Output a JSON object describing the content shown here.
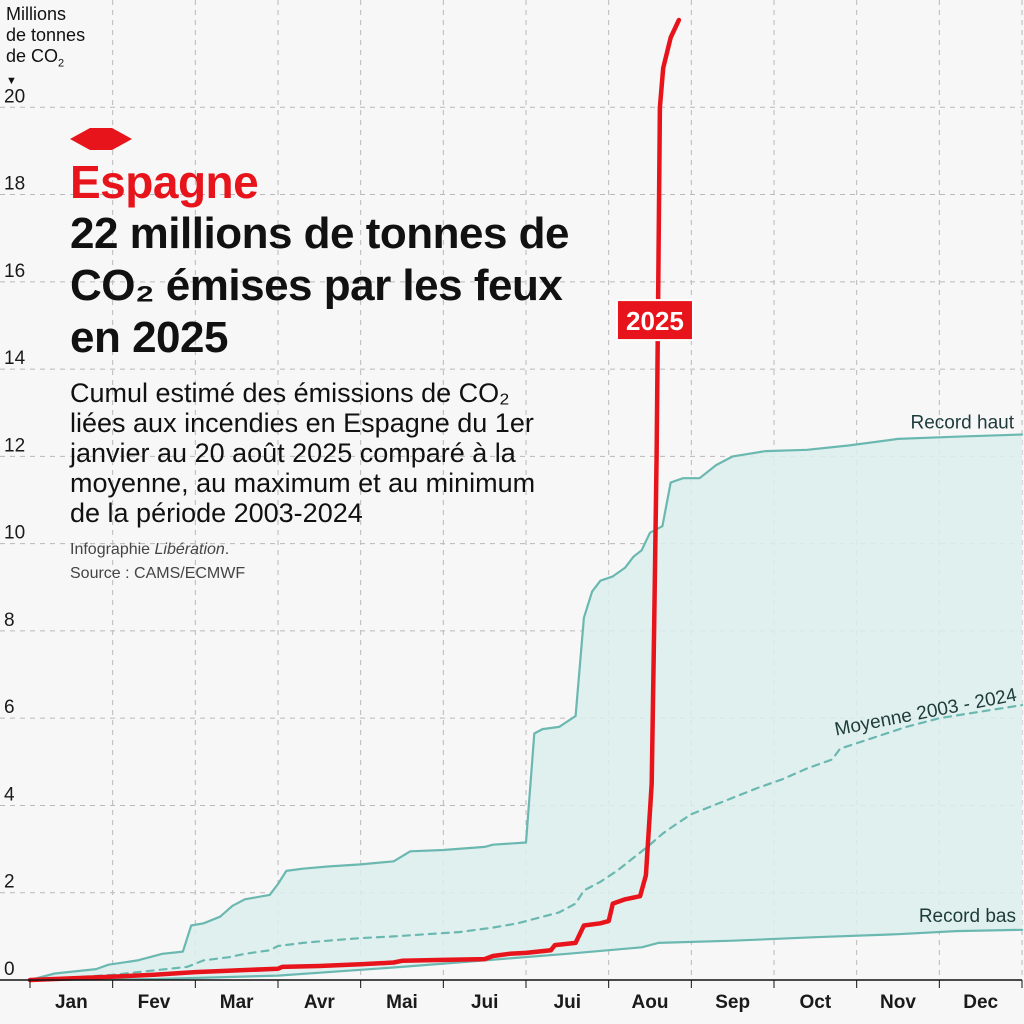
{
  "unit_label": {
    "line1": "Millions",
    "line2": "de tonnes",
    "line3_prefix": "de CO",
    "line3_sub": "2",
    "arrow": "▼"
  },
  "title": {
    "country": "Espagne",
    "headline": "22 millions de tonnes de CO₂ émises par les feux en 2025",
    "subtitle": "Cumul estimé des émissions de CO₂ liées aux incendies en Espagne du 1er janvier au 20 août 2025 comparé à la moyenne, au maximum et au minimum de la période 2003-2024",
    "credit_prefix": "Infographie ",
    "credit_publication": "Libération",
    "credit_suffix": ".",
    "source": "Source : CAMS/ECMWF"
  },
  "colors": {
    "accent": "#e8141c",
    "teal": "#6bb8b1",
    "band": "#dcefed",
    "grid": "#b9b9b9"
  },
  "chart_data": {
    "type": "line",
    "title": "22 millions de tonnes de CO₂ émises par les feux en 2025",
    "ylabel": "Millions de tonnes de CO₂",
    "xlabel": "",
    "xlim": [
      0,
      12
    ],
    "ylim": [
      0,
      22
    ],
    "yticks": [
      0,
      2,
      4,
      6,
      8,
      10,
      12,
      14,
      16,
      18,
      20
    ],
    "month_labels": [
      "Jan",
      "Fev",
      "Mar",
      "Avr",
      "Mai",
      "Jui",
      "Jui",
      "Aou",
      "Sep",
      "Oct",
      "Nov",
      "Dec"
    ],
    "series": [
      {
        "name": "Record haut",
        "style": "solid",
        "points": [
          [
            0,
            0
          ],
          [
            0.3,
            0.15
          ],
          [
            0.8,
            0.25
          ],
          [
            0.95,
            0.35
          ],
          [
            1.3,
            0.45
          ],
          [
            1.6,
            0.6
          ],
          [
            1.85,
            0.65
          ],
          [
            1.95,
            1.25
          ],
          [
            2.1,
            1.3
          ],
          [
            2.3,
            1.45
          ],
          [
            2.45,
            1.7
          ],
          [
            2.6,
            1.85
          ],
          [
            2.9,
            1.95
          ],
          [
            3.0,
            2.2
          ],
          [
            3.1,
            2.5
          ],
          [
            3.3,
            2.55
          ],
          [
            3.6,
            2.6
          ],
          [
            4.0,
            2.65
          ],
          [
            4.4,
            2.72
          ],
          [
            4.6,
            2.95
          ],
          [
            5.0,
            2.98
          ],
          [
            5.5,
            3.05
          ],
          [
            5.6,
            3.1
          ],
          [
            6.0,
            3.15
          ],
          [
            6.1,
            5.65
          ],
          [
            6.2,
            5.75
          ],
          [
            6.4,
            5.8
          ],
          [
            6.6,
            6.05
          ],
          [
            6.7,
            8.3
          ],
          [
            6.8,
            8.9
          ],
          [
            6.9,
            9.15
          ],
          [
            7.05,
            9.25
          ],
          [
            7.2,
            9.45
          ],
          [
            7.3,
            9.7
          ],
          [
            7.4,
            9.85
          ],
          [
            7.5,
            10.25
          ],
          [
            7.65,
            10.4
          ],
          [
            7.75,
            11.4
          ],
          [
            7.9,
            11.5
          ],
          [
            8.1,
            11.5
          ],
          [
            8.3,
            11.8
          ],
          [
            8.5,
            12.0
          ],
          [
            8.9,
            12.12
          ],
          [
            9.4,
            12.15
          ],
          [
            9.9,
            12.25
          ],
          [
            10.5,
            12.4
          ],
          [
            11.2,
            12.45
          ],
          [
            12,
            12.5
          ]
        ]
      },
      {
        "name": "Moyenne 2003 - 2024",
        "style": "dashed",
        "points": [
          [
            0,
            0
          ],
          [
            0.5,
            0.06
          ],
          [
            1.0,
            0.12
          ],
          [
            1.5,
            0.22
          ],
          [
            1.9,
            0.3
          ],
          [
            2.1,
            0.45
          ],
          [
            2.4,
            0.52
          ],
          [
            2.6,
            0.6
          ],
          [
            2.9,
            0.68
          ],
          [
            3.0,
            0.78
          ],
          [
            3.3,
            0.85
          ],
          [
            3.6,
            0.9
          ],
          [
            4.0,
            0.96
          ],
          [
            4.4,
            1.0
          ],
          [
            4.8,
            1.05
          ],
          [
            5.2,
            1.1
          ],
          [
            5.6,
            1.2
          ],
          [
            5.9,
            1.3
          ],
          [
            6.1,
            1.4
          ],
          [
            6.4,
            1.55
          ],
          [
            6.6,
            1.75
          ],
          [
            6.7,
            2.05
          ],
          [
            6.9,
            2.25
          ],
          [
            7.1,
            2.5
          ],
          [
            7.3,
            2.8
          ],
          [
            7.5,
            3.1
          ],
          [
            7.65,
            3.35
          ],
          [
            7.8,
            3.55
          ],
          [
            8.0,
            3.8
          ],
          [
            8.4,
            4.1
          ],
          [
            8.8,
            4.4
          ],
          [
            9.1,
            4.6
          ],
          [
            9.4,
            4.85
          ],
          [
            9.7,
            5.05
          ],
          [
            9.8,
            5.3
          ],
          [
            10.2,
            5.55
          ],
          [
            10.6,
            5.8
          ],
          [
            11.0,
            6.0
          ],
          [
            11.5,
            6.15
          ],
          [
            12,
            6.3
          ]
        ]
      },
      {
        "name": "Record bas",
        "style": "solid",
        "points": [
          [
            0,
            0
          ],
          [
            1.5,
            0.02
          ],
          [
            3.0,
            0.1
          ],
          [
            4.5,
            0.3
          ],
          [
            5.5,
            0.45
          ],
          [
            6.5,
            0.6
          ],
          [
            7.4,
            0.75
          ],
          [
            7.6,
            0.85
          ],
          [
            8.5,
            0.9
          ],
          [
            9.5,
            0.98
          ],
          [
            10.5,
            1.05
          ],
          [
            11.2,
            1.12
          ],
          [
            12,
            1.15
          ]
        ]
      },
      {
        "name": "2025",
        "style": "solid",
        "points": [
          [
            0,
            0
          ],
          [
            0.8,
            0.06
          ],
          [
            1.5,
            0.12
          ],
          [
            2.0,
            0.18
          ],
          [
            2.5,
            0.22
          ],
          [
            3.0,
            0.26
          ],
          [
            3.05,
            0.3
          ],
          [
            3.5,
            0.32
          ],
          [
            4.0,
            0.36
          ],
          [
            4.4,
            0.4
          ],
          [
            4.5,
            0.44
          ],
          [
            5.0,
            0.46
          ],
          [
            5.5,
            0.48
          ],
          [
            5.6,
            0.55
          ],
          [
            5.8,
            0.6
          ],
          [
            6.0,
            0.62
          ],
          [
            6.3,
            0.68
          ],
          [
            6.35,
            0.8
          ],
          [
            6.6,
            0.85
          ],
          [
            6.7,
            1.25
          ],
          [
            6.9,
            1.3
          ],
          [
            7.0,
            1.35
          ],
          [
            7.05,
            1.75
          ],
          [
            7.2,
            1.85
          ],
          [
            7.38,
            1.92
          ],
          [
            7.45,
            2.4
          ],
          [
            7.52,
            4.5
          ],
          [
            7.55,
            8.0
          ],
          [
            7.58,
            12.0
          ],
          [
            7.6,
            16.0
          ],
          [
            7.62,
            20.0
          ],
          [
            7.66,
            20.9
          ],
          [
            7.75,
            21.6
          ],
          [
            7.85,
            22.0
          ]
        ]
      }
    ],
    "series_labels": {
      "record_high": "Record haut",
      "average": "Moyenne 2003 - 2024",
      "record_low": "Record bas",
      "current": "2025"
    }
  }
}
